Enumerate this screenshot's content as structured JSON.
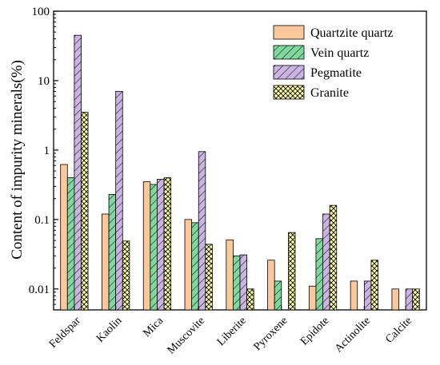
{
  "chart_data": {
    "type": "bar",
    "y_scale": "log",
    "ylim": [
      0.005,
      100
    ],
    "ylabel": "Content of impurity minerals(%)",
    "xlabel": "",
    "y_ticks": [
      {
        "value": 100,
        "label": "100"
      },
      {
        "value": 10,
        "label": "10"
      },
      {
        "value": 1,
        "label": "1"
      },
      {
        "value": 0.1,
        "label": "0.1"
      },
      {
        "value": 0.01,
        "label": "0.01"
      }
    ],
    "categories": [
      "Feldspar",
      "Kaolin",
      "Mica",
      "Muscovite",
      "Liberite",
      "Pyroxene",
      "Epidote",
      "Actinolite",
      "Calcite"
    ],
    "series": [
      {
        "name": "Quartzite quartz",
        "color": "#fbc89c",
        "pattern": "solid",
        "values": [
          0.62,
          0.12,
          0.35,
          0.1,
          0.051,
          0.026,
          0.011,
          0.013,
          0.01
        ]
      },
      {
        "name": "Vein quartz",
        "color": "#7fd99e",
        "pattern": "diagonal",
        "values": [
          0.4,
          0.23,
          0.32,
          0.09,
          0.03,
          0.013,
          0.053,
          null,
          null
        ]
      },
      {
        "name": "Pegmatite",
        "color": "#c9b4e2",
        "pattern": "diagonal",
        "values": [
          45,
          7,
          0.38,
          0.95,
          0.031,
          null,
          0.12,
          0.013,
          0.01
        ]
      },
      {
        "name": "Granite",
        "color": "#fafaa0",
        "pattern": "crosshatch",
        "values": [
          3.5,
          0.049,
          0.4,
          0.044,
          0.01,
          0.065,
          0.16,
          0.026,
          0.01
        ]
      }
    ],
    "grid": false,
    "legend_position": "top-right"
  }
}
